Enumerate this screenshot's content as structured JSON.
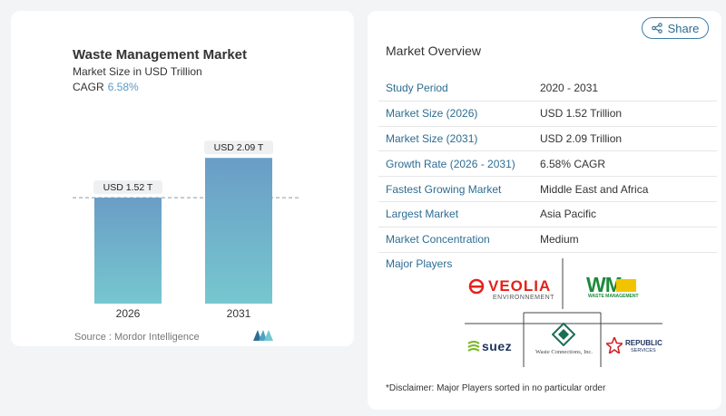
{
  "chart_title": "Waste Management Market",
  "chart_subtitle": "Market Size in USD Trillion",
  "cagr_label": "CAGR",
  "cagr_value": "6.58%",
  "chart_data": {
    "type": "bar",
    "categories": [
      "2026",
      "2031"
    ],
    "values": [
      1.52,
      2.09
    ],
    "data_labels": [
      "USD 1.52 T",
      "USD 2.09 T"
    ],
    "title": "Waste Management Market",
    "subtitle": "Market Size in USD Trillion",
    "ylim": [
      0,
      2.6
    ],
    "reference_line": 1.52,
    "colors": {
      "bar_top": "#6a9dc6",
      "bar_bottom": "#76c7cf"
    }
  },
  "source_text": "Source :  Mordor Intelligence",
  "share_label": "Share",
  "overview_title": "Market Overview",
  "overview_rows": [
    {
      "key": "Study Period",
      "value": "2020 - 2031"
    },
    {
      "key": "Market Size (2026)",
      "value": "USD 1.52 Trillion"
    },
    {
      "key": "Market Size (2031)",
      "value": "USD 2.09 Trillion"
    },
    {
      "key": "Growth Rate (2026 - 2031)",
      "value": "6.58% CAGR"
    },
    {
      "key": "Fastest Growing Market",
      "value": "Middle East and Africa"
    },
    {
      "key": "Largest Market",
      "value": "Asia Pacific"
    },
    {
      "key": "Market Concentration",
      "value": "Medium"
    }
  ],
  "major_players_title": "Major Players",
  "players": {
    "veolia": "VEOLIA",
    "veolia_sub": "ENVIRONNEMENT",
    "wm": "WM",
    "wm_sub": "WASTE MANAGEMENT",
    "suez": "SUEZ",
    "waste_connections": "Waste Connections, Inc.",
    "republic": "REPUBLIC",
    "republic_sub": "SERVICES"
  },
  "disclaimer": "*Disclaimer: Major Players sorted in no particular order"
}
